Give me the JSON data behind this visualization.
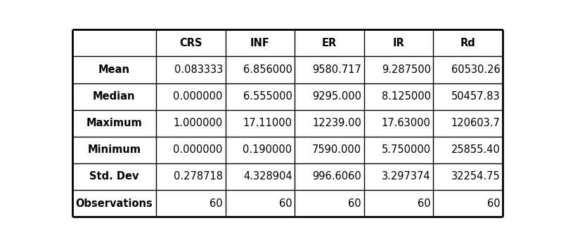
{
  "columns": [
    "",
    "CRS",
    "INF",
    "ER",
    "IR",
    "Rd"
  ],
  "rows": [
    [
      "Mean",
      "0.083333",
      "6.856000",
      "9580.717",
      "9.287500",
      "60530.26"
    ],
    [
      "Median",
      "0.000000",
      "6.555000",
      "9295.000",
      "8.125000",
      "50457.83"
    ],
    [
      "Maximum",
      "1.000000",
      "17.11000",
      "12239.00",
      "17.63000",
      "120603.7"
    ],
    [
      "Minimum",
      "0.000000",
      "0.190000",
      "7590.000",
      "5.750000",
      "25855.40"
    ],
    [
      "Std. Dev",
      "0.278718",
      "4.328904",
      "996.6060",
      "3.297374",
      "32254.75"
    ],
    [
      "Observations",
      "60",
      "60",
      "60",
      "60",
      "60"
    ]
  ],
  "col_widths": [
    1.75,
    1.45,
    1.45,
    1.45,
    1.45,
    1.45
  ],
  "bg_color": "#ffffff",
  "border_color": "#000000",
  "text_color": "#000000",
  "font_size": 10.5,
  "header_font_size": 10.5,
  "lw_outer": 2.0,
  "lw_inner": 1.0
}
